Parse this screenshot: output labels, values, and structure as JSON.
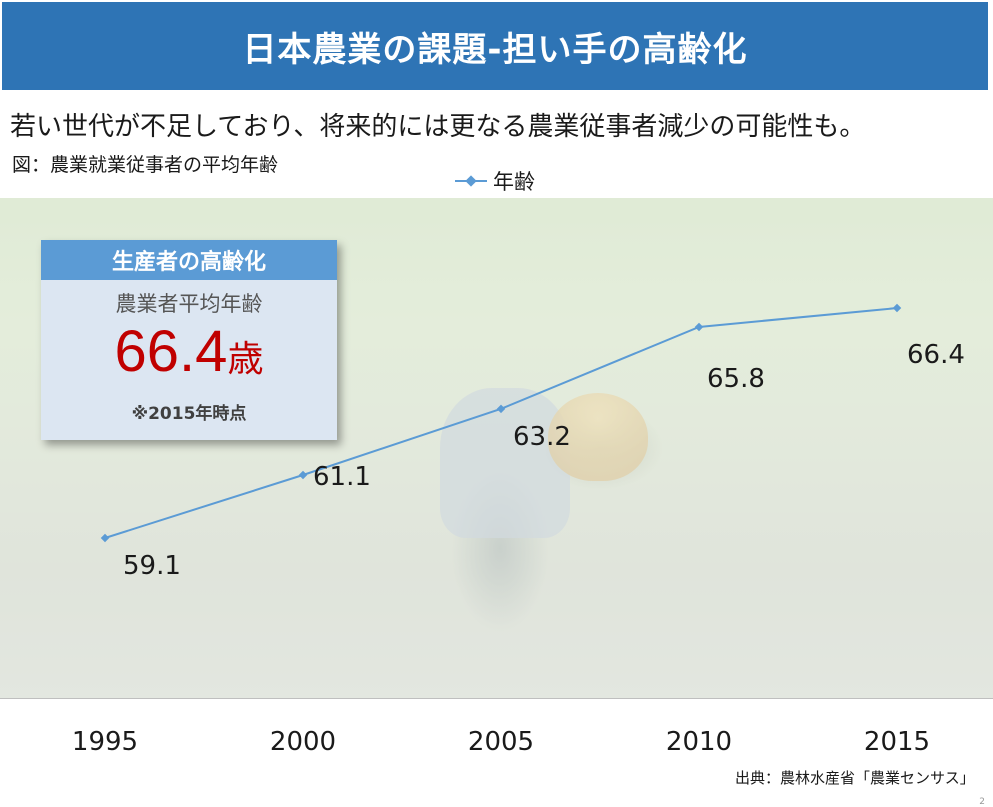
{
  "header": {
    "title": "日本農業の課題-担い手の高齢化",
    "subtitle": "若い世代が不足しており、将来的には更なる農業従事者減少の可能性も。",
    "figure_caption": "図：農業就業従事者の平均年齢"
  },
  "infobox": {
    "heading": "生産者の高齢化",
    "label": "農業者平均年齢",
    "value": "66.4",
    "unit": "歳",
    "note": "※2015年時点"
  },
  "source": "出典：農林水産省「農業センサス」",
  "page_number": "2",
  "colors": {
    "title_bar": "#2e74b5",
    "series_line": "#5b9bd5",
    "infobox_head": "#5b9bd5",
    "infobox_value": "#c00000"
  },
  "chart_data": {
    "type": "line",
    "categories": [
      "1995",
      "2000",
      "2005",
      "2010",
      "2015"
    ],
    "series": [
      {
        "name": "年齢",
        "values": [
          59.1,
          61.1,
          63.2,
          65.8,
          66.4
        ]
      }
    ],
    "data_labels": [
      "59.1",
      "61.1",
      "63.2",
      "65.8",
      "66.4"
    ],
    "legend_position": "top-center",
    "grid": false
  }
}
